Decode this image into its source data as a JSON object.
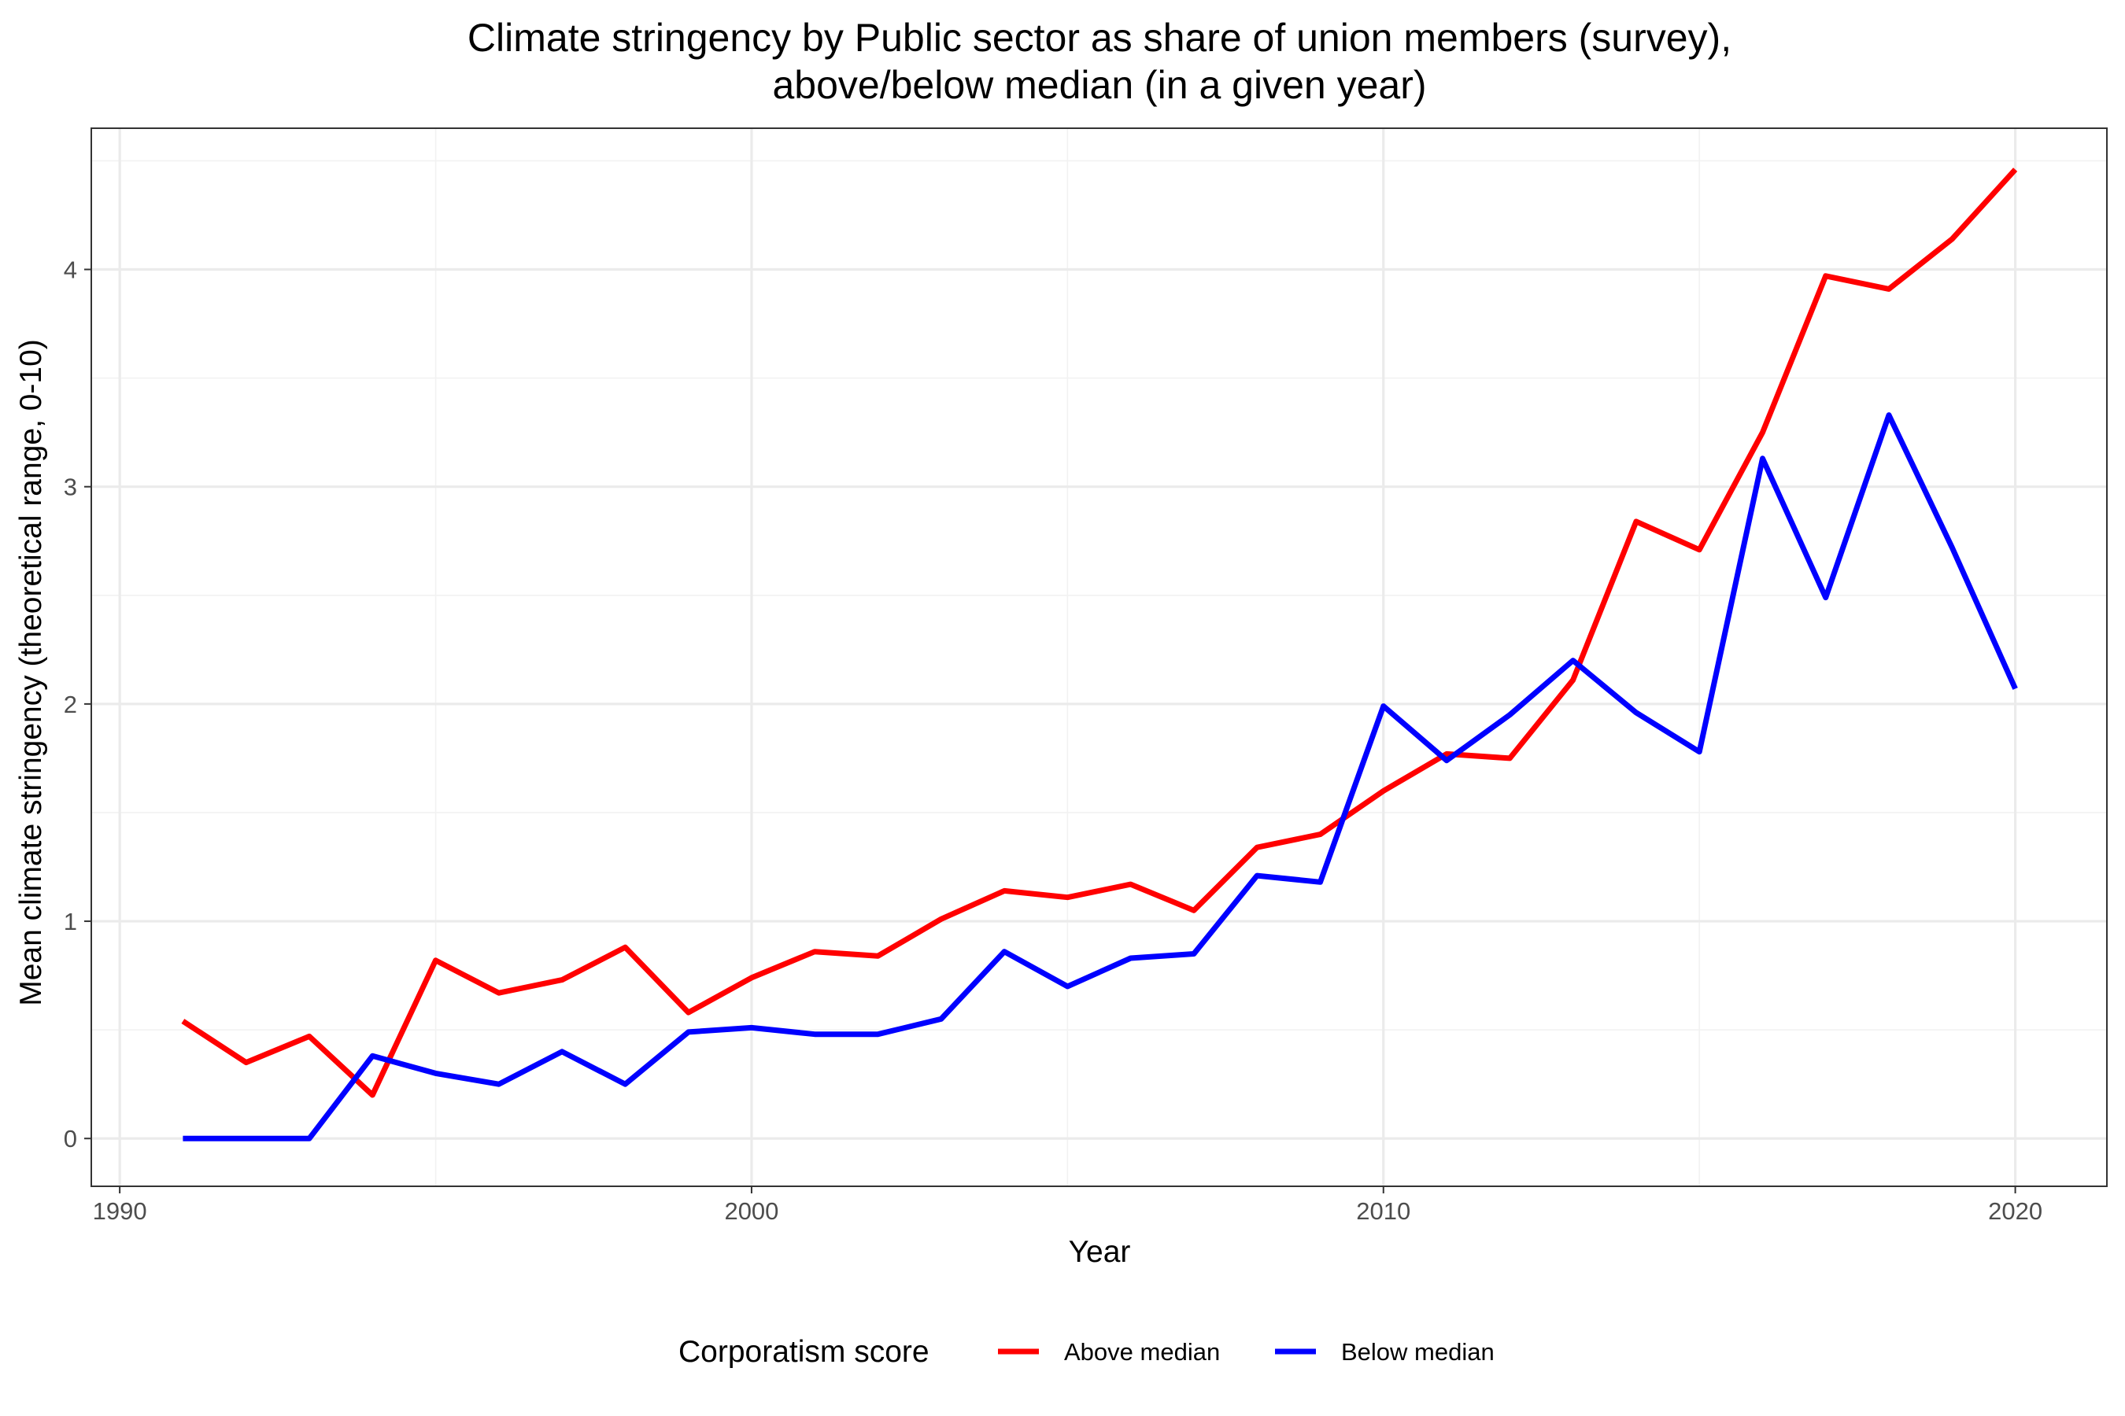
{
  "chart_data": {
    "type": "line",
    "title": "Climate stringency by Public sector as share of union members (survey),",
    "subtitle": "above/below median (in a given year)",
    "xlabel": "Year",
    "ylabel": "Mean climate stringency (theoretical range, 0-10)",
    "xlim": [
      1989.55,
      2021.45
    ],
    "ylim": [
      -0.22,
      4.65
    ],
    "x_ticks": [
      1990,
      2000,
      2010,
      2020
    ],
    "x_tick_labels": [
      "1990",
      "2000",
      "2010",
      "2020"
    ],
    "y_ticks": [
      0,
      1,
      2,
      3,
      4
    ],
    "y_tick_labels": [
      "0",
      "1",
      "2",
      "3",
      "4"
    ],
    "x_minor_ticks": [
      1995,
      2005,
      2015
    ],
    "y_minor_ticks": [
      0.5,
      1.5,
      2.5,
      3.5,
      4.5
    ],
    "grid": true,
    "legend": {
      "title": "Corporatism score",
      "position": "bottom"
    },
    "x": [
      1991,
      1992,
      1993,
      1994,
      1995,
      1996,
      1997,
      1998,
      1999,
      2000,
      2001,
      2002,
      2003,
      2004,
      2005,
      2006,
      2007,
      2008,
      2009,
      2010,
      2011,
      2012,
      2013,
      2014,
      2015,
      2016,
      2017,
      2018,
      2019,
      2020
    ],
    "series": [
      {
        "name": "Above median",
        "color": "#ff0000",
        "values": [
          0.54,
          0.35,
          0.47,
          0.2,
          0.82,
          0.67,
          0.73,
          0.88,
          0.58,
          0.74,
          0.86,
          0.84,
          1.01,
          1.14,
          1.11,
          1.17,
          1.05,
          1.34,
          1.4,
          1.6,
          1.77,
          1.75,
          2.11,
          2.84,
          2.71,
          3.25,
          3.97,
          3.91,
          4.14,
          4.46
        ]
      },
      {
        "name": "Below median",
        "color": "#0000ff",
        "values": [
          0.0,
          0.0,
          0.0,
          0.38,
          0.3,
          0.25,
          0.4,
          0.25,
          0.49,
          0.51,
          0.48,
          0.48,
          0.55,
          0.86,
          0.7,
          0.83,
          0.85,
          1.21,
          1.18,
          1.99,
          1.74,
          1.95,
          2.2,
          1.96,
          1.78,
          3.13,
          2.49,
          3.33,
          2.72,
          2.07
        ]
      }
    ]
  }
}
